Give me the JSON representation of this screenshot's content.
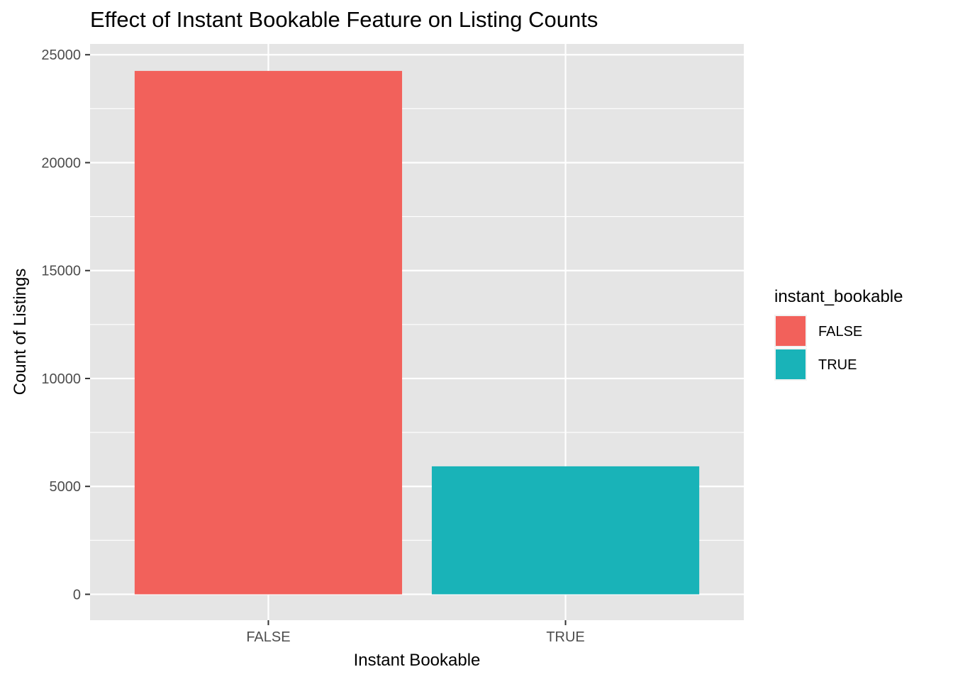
{
  "chart_data": {
    "type": "bar",
    "title": "Effect of Instant Bookable Feature on Listing Counts",
    "xlabel": "Instant Bookable",
    "ylabel": "Count of Listings",
    "categories": [
      "FALSE",
      "TRUE"
    ],
    "values": [
      24250,
      5930
    ],
    "colors": [
      "#F2615B",
      "#19B3B8"
    ],
    "ylim": [
      -1200,
      25500
    ],
    "yticks": [
      0,
      5000,
      10000,
      15000,
      20000,
      25000
    ],
    "ytick_labels": [
      "0",
      "5000",
      "10000",
      "15000",
      "20000",
      "25000"
    ],
    "y_minor_ticks": [
      2500,
      7500,
      12500,
      17500,
      22500
    ],
    "grid": true,
    "panel_background": "#E5E5E5",
    "grid_color": "#FFFFFF",
    "legend": {
      "title": "instant_bookable",
      "position": "right",
      "entries": [
        {
          "label": "FALSE",
          "color": "#F2615B"
        },
        {
          "label": "TRUE",
          "color": "#19B3B8"
        }
      ]
    }
  }
}
